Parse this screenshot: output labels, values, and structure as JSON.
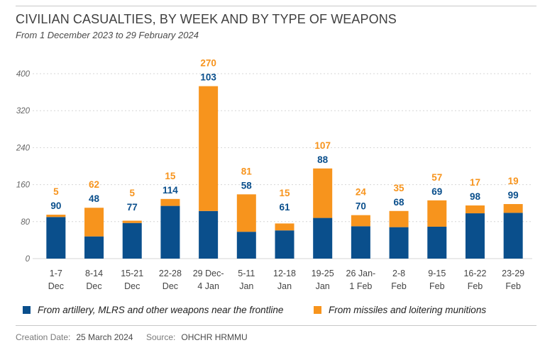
{
  "chart_data": {
    "type": "bar",
    "stacked": true,
    "title": "CIVILIAN CASUALTIES, BY WEEK AND BY TYPE OF WEAPONS",
    "subtitle": "From 1 December 2023 to 29 February 2024",
    "categories": [
      [
        "1-7",
        "Dec"
      ],
      [
        "8-14",
        "Dec"
      ],
      [
        "15-21",
        "Dec"
      ],
      [
        "22-28",
        "Dec"
      ],
      [
        "29 Dec-",
        "4 Jan"
      ],
      [
        "5-11",
        "Jan"
      ],
      [
        "12-18",
        "Jan"
      ],
      [
        "19-25",
        "Jan"
      ],
      [
        "26 Jan-",
        "1 Feb"
      ],
      [
        "2-8",
        "Feb"
      ],
      [
        "9-15",
        "Feb"
      ],
      [
        "16-22",
        "Feb"
      ],
      [
        "23-29",
        "Feb"
      ]
    ],
    "series": [
      {
        "name": "From artillery, MLRS and other weapons near the frontline",
        "color": "#0a4f8c",
        "values": [
          90,
          48,
          77,
          114,
          103,
          58,
          61,
          88,
          70,
          68,
          69,
          98,
          99
        ]
      },
      {
        "name": "From missiles and loitering munitions",
        "color": "#f7941d",
        "values": [
          5,
          62,
          5,
          15,
          270,
          81,
          15,
          107,
          24,
          35,
          57,
          17,
          19
        ]
      }
    ],
    "y_ticks": [
      "0",
      "80",
      "160",
      "240",
      "320",
      "400"
    ],
    "ylim": [
      0,
      400
    ],
    "grid": true,
    "legend_position": "bottom"
  },
  "footer": {
    "creation_label": "Creation Date:",
    "creation_value": "25 March 2024",
    "source_label": "Source:",
    "source_value": "OHCHR HRMMU"
  }
}
